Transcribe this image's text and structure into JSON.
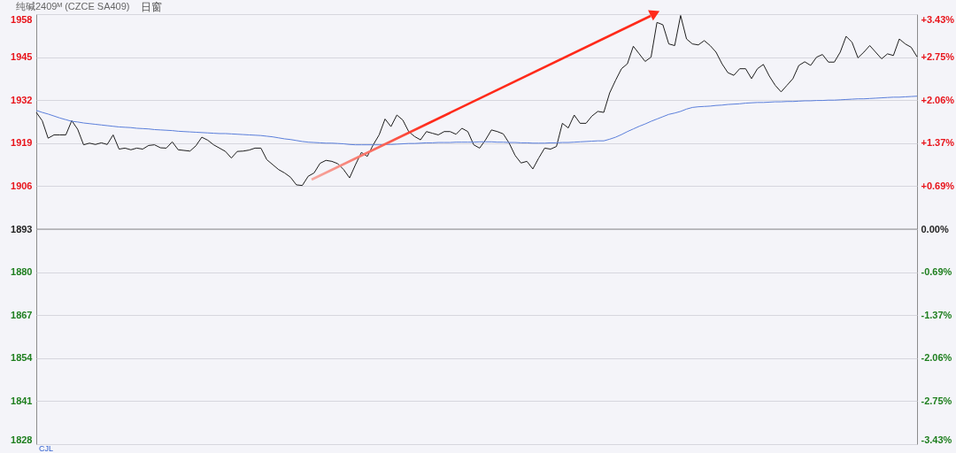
{
  "chart_data": {
    "type": "line",
    "title": "纯碱2409ᴹ (CZCE SA409)",
    "annotations": [
      "日窗",
      "CJL"
    ],
    "categories": [
      null,
      null,
      null,
      null,
      null,
      null,
      null,
      null,
      null,
      null,
      null,
      null,
      null,
      null,
      null,
      null,
      null,
      null,
      null,
      null,
      null,
      null,
      null,
      null,
      null,
      null,
      null,
      null,
      null,
      null,
      null,
      null,
      null,
      null,
      null,
      null,
      null,
      null,
      null,
      null,
      null,
      null,
      null,
      null,
      null,
      null,
      null,
      null,
      null,
      null,
      null,
      null,
      null,
      null,
      null,
      null,
      null,
      null,
      null,
      null,
      null,
      null,
      null,
      null,
      null,
      null,
      null,
      null,
      null,
      null,
      null,
      null,
      null,
      null,
      null,
      null,
      null,
      null,
      null,
      null,
      null,
      null,
      null,
      null,
      null,
      null,
      null,
      null,
      null,
      null,
      null,
      null,
      null,
      null,
      null,
      null,
      null,
      null,
      null,
      null,
      null,
      null,
      null,
      null,
      null,
      null,
      null,
      null,
      null,
      null,
      null,
      null,
      null,
      null,
      null,
      null,
      null,
      null,
      null,
      null,
      null,
      null,
      null,
      null,
      null,
      null,
      null,
      null,
      null,
      null,
      null,
      null,
      null,
      null,
      null,
      null,
      null,
      null,
      null,
      null,
      null,
      null,
      null,
      null,
      null,
      null,
      null,
      null,
      null,
      null
    ],
    "series": [
      {
        "color": "#1e1e1e",
        "values": [
          1928.3,
          1925.8,
          1920.5,
          1921.5,
          1921.5,
          1921.5,
          1925.8,
          1923.2,
          1918.5,
          1919,
          1918.6,
          1919.1,
          1918.6,
          1921.5,
          1917.2,
          1917.5,
          1917,
          1917.5,
          1917.2,
          1918.3,
          1918.5,
          1917.6,
          1917.5,
          1919.4,
          1917,
          1916.8,
          1916.6,
          1918.2,
          1920.8,
          1919.9,
          1918.5,
          1917.5,
          1916.5,
          1914.5,
          1916.5,
          1916.6,
          1916.9,
          1917.5,
          1917.5,
          1914,
          1912.5,
          1911,
          1910,
          1908.7,
          1906.4,
          1906.2,
          1909,
          1910,
          1912.9,
          1913.8,
          1913.5,
          1912.8,
          1911,
          1908.5,
          1912.5,
          1916.2,
          1915,
          1918.5,
          1921.5,
          1926.3,
          1924,
          1927.5,
          1926,
          1922.5,
          1921,
          1920,
          1922.5,
          1922,
          1921.5,
          1922.5,
          1922.5,
          1921.7,
          1923.5,
          1922.5,
          1918.5,
          1917.5,
          1920,
          1923,
          1922.5,
          1921.8,
          1919,
          1915.3,
          1913,
          1913.5,
          1911.2,
          1914.5,
          1917.5,
          1917.2,
          1918,
          1925,
          1923.6,
          1927.5,
          1925,
          1925,
          1927.2,
          1928.6,
          1928.3,
          1934.2,
          1938,
          1941.5,
          1943,
          1948.3,
          1946,
          1943.7,
          1945,
          1955.5,
          1954.8,
          1949,
          1948.5,
          1957.6,
          1950.5,
          1949,
          1948.7,
          1950,
          1948.5,
          1946.5,
          1943,
          1940.3,
          1939.5,
          1941.5,
          1941.5,
          1938.5,
          1941.5,
          1942.8,
          1939.3,
          1936.5,
          1934.5,
          1936.5,
          1938.5,
          1942.5,
          1943.6,
          1942.5,
          1945,
          1945.8,
          1943.5,
          1943.5,
          1946.5,
          1951.3,
          1949.5,
          1944.8,
          1946.5,
          1948.5,
          1946.5,
          1944.5,
          1946,
          1945.5,
          1950.5,
          1949,
          1948,
          1945.1
        ]
      },
      {
        "color": "#5b7fdb",
        "values": [
          1928.9,
          1928.3,
          1927.8,
          1927.2,
          1926.6,
          1926.1,
          1925.6,
          1925.4,
          1925.1,
          1924.9,
          1924.7,
          1924.5,
          1924.3,
          1924.1,
          1923.9,
          1923.8,
          1923.7,
          1923.5,
          1923.4,
          1923.3,
          1923.1,
          1923.0,
          1922.9,
          1922.8,
          1922.6,
          1922.5,
          1922.4,
          1922.3,
          1922.2,
          1922.1,
          1922.0,
          1921.9,
          1921.9,
          1921.8,
          1921.7,
          1921.6,
          1921.5,
          1921.4,
          1921.3,
          1921.1,
          1920.9,
          1920.6,
          1920.3,
          1920.1,
          1919.8,
          1919.5,
          1919.3,
          1919.2,
          1919.1,
          1919.0,
          1919.0,
          1918.9,
          1918.8,
          1918.6,
          1918.5,
          1918.5,
          1918.5,
          1918.5,
          1918.5,
          1918.6,
          1918.6,
          1918.7,
          1918.8,
          1918.9,
          1918.9,
          1919.0,
          1919.1,
          1919.1,
          1919.2,
          1919.2,
          1919.2,
          1919.3,
          1919.3,
          1919.3,
          1919.3,
          1919.4,
          1919.4,
          1919.4,
          1919.3,
          1919.3,
          1919.2,
          1919.2,
          1919.1,
          1919.1,
          1919.0,
          1919.0,
          1919.0,
          1919.1,
          1919.1,
          1919.2,
          1919.2,
          1919.3,
          1919.4,
          1919.5,
          1919.6,
          1919.7,
          1919.7,
          1920.2,
          1920.8,
          1921.6,
          1922.5,
          1923.3,
          1924.1,
          1924.8,
          1925.6,
          1926.3,
          1927.0,
          1927.7,
          1928.1,
          1928.6,
          1929.3,
          1929.8,
          1930.0,
          1930.1,
          1930.2,
          1930.4,
          1930.5,
          1930.7,
          1930.8,
          1930.9,
          1931.1,
          1931.2,
          1931.3,
          1931.3,
          1931.4,
          1931.5,
          1931.5,
          1931.6,
          1931.6,
          1931.7,
          1931.8,
          1931.8,
          1931.9,
          1931.9,
          1932.0,
          1932.0,
          1932.1,
          1932.2,
          1932.3,
          1932.4,
          1932.4,
          1932.5,
          1932.6,
          1932.7,
          1932.8,
          1932.9,
          1932.9,
          1933.0,
          1933.1,
          1933.2
        ]
      }
    ],
    "ylim": [
      1828,
      1958
    ],
    "yticks": [
      1958,
      1945,
      1932,
      1919,
      1906,
      1893,
      1880,
      1867,
      1854,
      1841,
      1828
    ],
    "y2lim": [
      -3.43,
      3.43
    ],
    "y2ticks": [
      {
        "value": 3.43,
        "label": "+3.43%"
      },
      {
        "value": 2.75,
        "label": "+2.75%"
      },
      {
        "value": 2.06,
        "label": "+2.06%"
      },
      {
        "value": 1.37,
        "label": "+1.37%"
      },
      {
        "value": 0.69,
        "label": "+0.69%"
      },
      {
        "value": 0,
        "label": "0.00%"
      },
      {
        "value": -0.69,
        "label": "-0.69%"
      },
      {
        "value": -1.37,
        "label": "-1.37%"
      },
      {
        "value": -2.06,
        "label": "-2.06%"
      },
      {
        "value": -2.75,
        "label": "-2.75%"
      },
      {
        "value": -3.43,
        "label": "-3.43%"
      }
    ],
    "ref_lines": [
      {
        "axis": "y2",
        "value": 0,
        "color": "#8f8f8f"
      }
    ],
    "grid": "y",
    "line_style": "solid",
    "tick_labels": "y"
  }
}
